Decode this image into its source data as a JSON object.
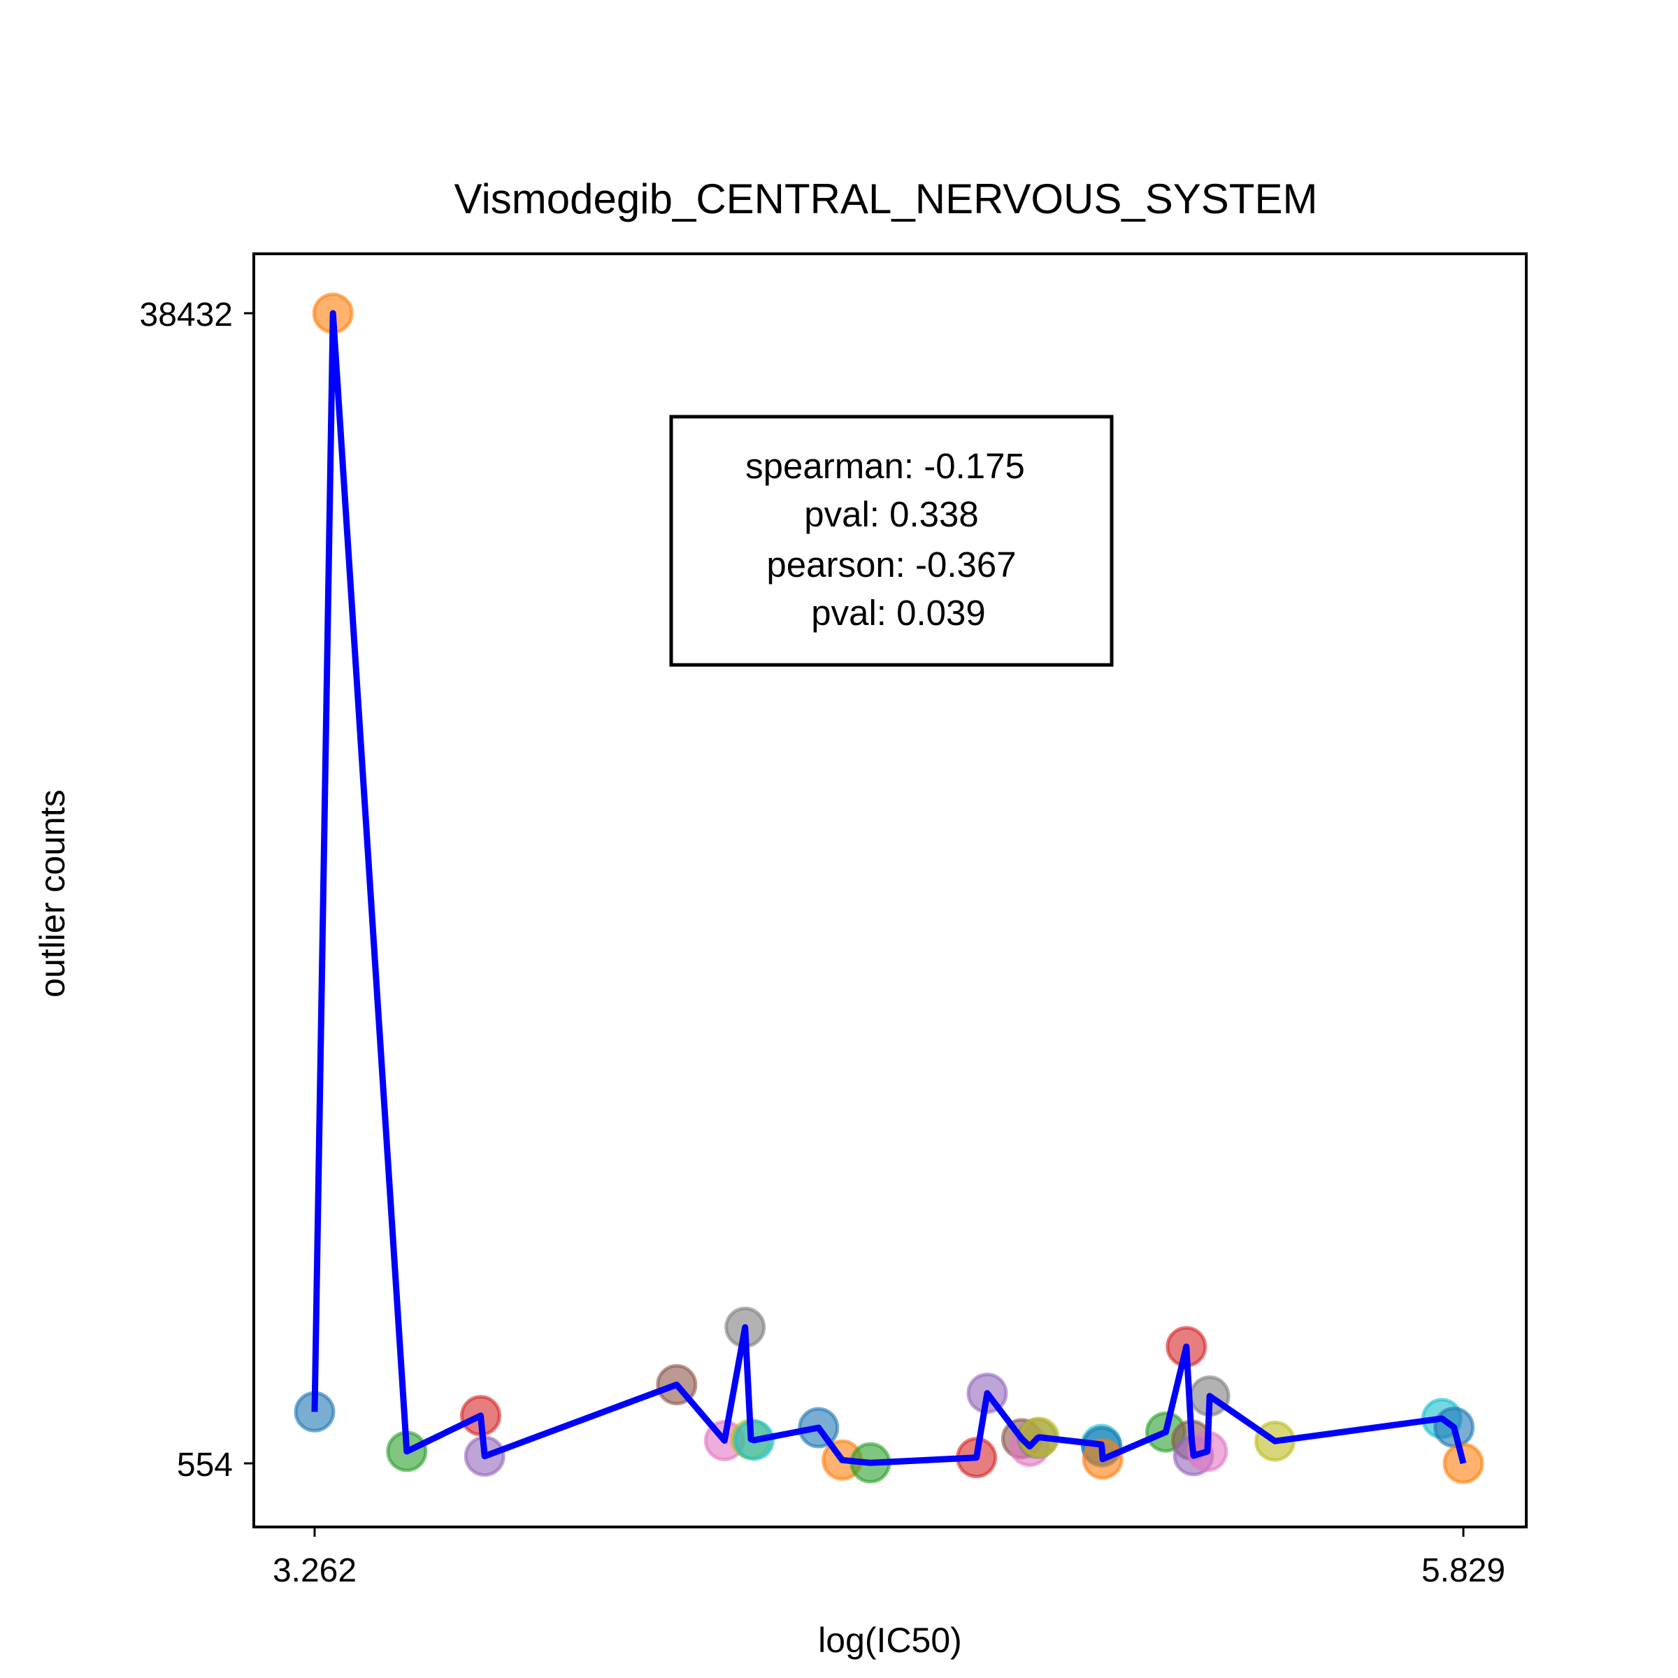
{
  "chart_data": {
    "type": "scatter",
    "title": "Vismodegib_CENTRAL_NERVOUS_SYSTEM",
    "xlabel": "log(IC50)",
    "ylabel": "outlier counts",
    "xlim": [
      3.262,
      5.829
    ],
    "ylim": [
      554,
      38432
    ],
    "xticks": [
      "3.262",
      "5.829"
    ],
    "yticks": [
      "38432",
      "554"
    ],
    "grid": false,
    "legend": "none",
    "line_color": "#0000ff",
    "stats": {
      "lines": [
        "spearman: -0.175",
        "pval: 0.338",
        "pearson: -0.367",
        "pval: 0.039"
      ],
      "placement": "top-center"
    },
    "points": [
      {
        "x": 3.262,
        "y": 2250,
        "color": "#1f77b4"
      },
      {
        "x": 3.303,
        "y": 38432,
        "color": "#ff7f0e"
      },
      {
        "x": 3.468,
        "y": 948,
        "color": "#2ca02c"
      },
      {
        "x": 3.633,
        "y": 2124,
        "color": "#d62728"
      },
      {
        "x": 3.642,
        "y": 791,
        "color": "#9467bd"
      },
      {
        "x": 4.071,
        "y": 3145,
        "color": "#8c564b"
      },
      {
        "x": 4.178,
        "y": 1303,
        "color": "#e377c2"
      },
      {
        "x": 4.224,
        "y": 5034,
        "color": "#7f7f7f"
      },
      {
        "x": 4.237,
        "y": 1350,
        "color": "#bcbd22"
      },
      {
        "x": 4.244,
        "y": 1319,
        "color": "#17becf"
      },
      {
        "x": 4.388,
        "y": 1728,
        "color": "#1f77b4"
      },
      {
        "x": 4.441,
        "y": 663,
        "color": "#ff7f0e"
      },
      {
        "x": 4.504,
        "y": 570,
        "color": "#2ca02c"
      },
      {
        "x": 4.741,
        "y": 743,
        "color": "#d62728"
      },
      {
        "x": 4.765,
        "y": 2863,
        "color": "#9467bd"
      },
      {
        "x": 4.842,
        "y": 1366,
        "color": "#8c564b"
      },
      {
        "x": 4.86,
        "y": 1114,
        "color": "#e377c2"
      },
      {
        "x": 4.877,
        "y": 1380,
        "color": "#7f7f7f"
      },
      {
        "x": 4.881,
        "y": 1413,
        "color": "#bcbd22"
      },
      {
        "x": 5.02,
        "y": 1176,
        "color": "#17becf"
      },
      {
        "x": 5.021,
        "y": 1097,
        "color": "#1f77b4"
      },
      {
        "x": 5.023,
        "y": 695,
        "color": "#ff7f0e"
      },
      {
        "x": 5.164,
        "y": 1586,
        "color": "#2ca02c"
      },
      {
        "x": 5.21,
        "y": 4398,
        "color": "#d62728"
      },
      {
        "x": 5.222,
        "y": 1317,
        "color": "#8c564b"
      },
      {
        "x": 5.226,
        "y": 807,
        "color": "#9467bd"
      },
      {
        "x": 5.257,
        "y": 948,
        "color": "#e377c2"
      },
      {
        "x": 5.262,
        "y": 2769,
        "color": "#7f7f7f"
      },
      {
        "x": 5.408,
        "y": 1286,
        "color": "#bcbd22"
      },
      {
        "x": 5.781,
        "y": 2030,
        "color": "#17becf"
      },
      {
        "x": 5.808,
        "y": 1743,
        "color": "#1f77b4"
      },
      {
        "x": 5.829,
        "y": 554,
        "color": "#ff7f0e"
      }
    ]
  }
}
